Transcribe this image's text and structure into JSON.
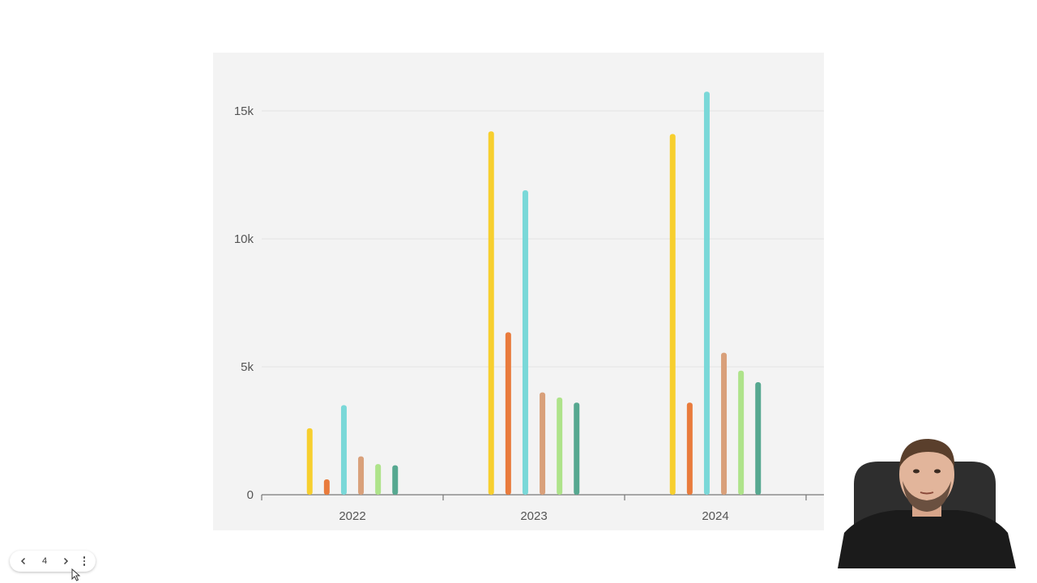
{
  "chart_data": {
    "type": "bar",
    "categories": [
      "2022",
      "2023",
      "2024"
    ],
    "series": [
      {
        "color": "#f7cf2e",
        "values": [
          2600,
          14200,
          14100
        ]
      },
      {
        "color": "#e97b3c",
        "values": [
          600,
          6350,
          3600
        ]
      },
      {
        "color": "#7ad8d8",
        "values": [
          3500,
          11900,
          15750
        ]
      },
      {
        "color": "#d9a07a",
        "values": [
          1500,
          4000,
          5550
        ]
      },
      {
        "color": "#aee38a",
        "values": [
          1200,
          3800,
          4850
        ]
      },
      {
        "color": "#56a890",
        "values": [
          1150,
          3600,
          4400
        ]
      }
    ],
    "y_ticks": [
      {
        "value": 0,
        "label": "0"
      },
      {
        "value": 5000,
        "label": "5k"
      },
      {
        "value": 10000,
        "label": "10k"
      },
      {
        "value": 15000,
        "label": "15k"
      }
    ],
    "ylim": [
      0,
      17000
    ],
    "grid": true,
    "legend": "none"
  },
  "navigation": {
    "page_number": "4",
    "prev_icon": "chevron-left-icon",
    "next_icon": "chevron-right-icon",
    "more_icon": "more-vertical-icon"
  },
  "presenter": {
    "icon": "webcam-presenter"
  }
}
